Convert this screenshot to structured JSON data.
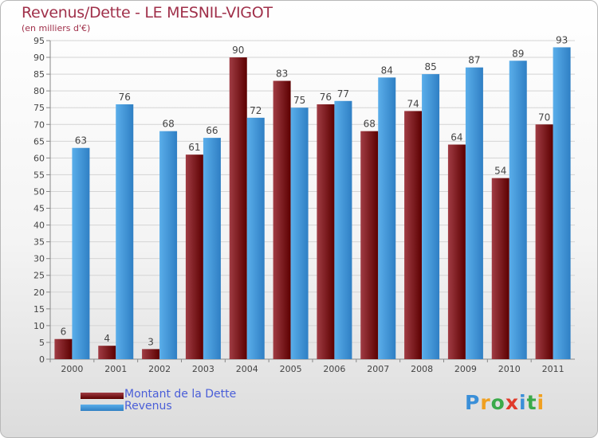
{
  "title": "Revenus/Dette - LE MESNIL-VIGOT",
  "subtitle": "(en milliers d'€)",
  "colors": {
    "dette_dark": "#5c0000",
    "dette_light": "#a03c44",
    "revenus_light": "#5aaeea",
    "revenus_dark": "#2f7fc4",
    "title": "#a0304a",
    "legend_text": "#4a5ed8"
  },
  "legend": {
    "dette_label": "Montant de la Dette",
    "revenus_label": "Revenus"
  },
  "logo": {
    "text": "Proxiti",
    "letters": [
      {
        "char": "P",
        "color": "#3a8fd8"
      },
      {
        "char": "r",
        "color": "#f0a020"
      },
      {
        "char": "o",
        "color": "#3aaa4a"
      },
      {
        "char": "x",
        "color": "#e03a2a"
      },
      {
        "char": "i",
        "color": "#3a8fd8"
      },
      {
        "char": "t",
        "color": "#3aaa4a"
      },
      {
        "char": "i",
        "color": "#f0a020"
      }
    ]
  },
  "chart_data": {
    "type": "bar",
    "title": "Revenus/Dette - LE MESNIL-VIGOT",
    "subtitle": "(en milliers d'€)",
    "categories": [
      "2000",
      "2001",
      "2002",
      "2003",
      "2004",
      "2005",
      "2006",
      "2007",
      "2008",
      "2009",
      "2010",
      "2011"
    ],
    "series": [
      {
        "name": "Montant de la Dette",
        "values": [
          6,
          4,
          3,
          61,
          90,
          83,
          76,
          68,
          74,
          64,
          54,
          70
        ]
      },
      {
        "name": "Revenus",
        "values": [
          63,
          76,
          68,
          66,
          72,
          75,
          77,
          84,
          85,
          87,
          89,
          93
        ]
      }
    ],
    "ylim": [
      0,
      95
    ],
    "yticks": [
      0,
      5,
      10,
      15,
      20,
      25,
      30,
      35,
      40,
      45,
      50,
      55,
      60,
      65,
      70,
      75,
      80,
      85,
      90,
      95
    ],
    "grid": true,
    "legend": "bottom-left"
  }
}
